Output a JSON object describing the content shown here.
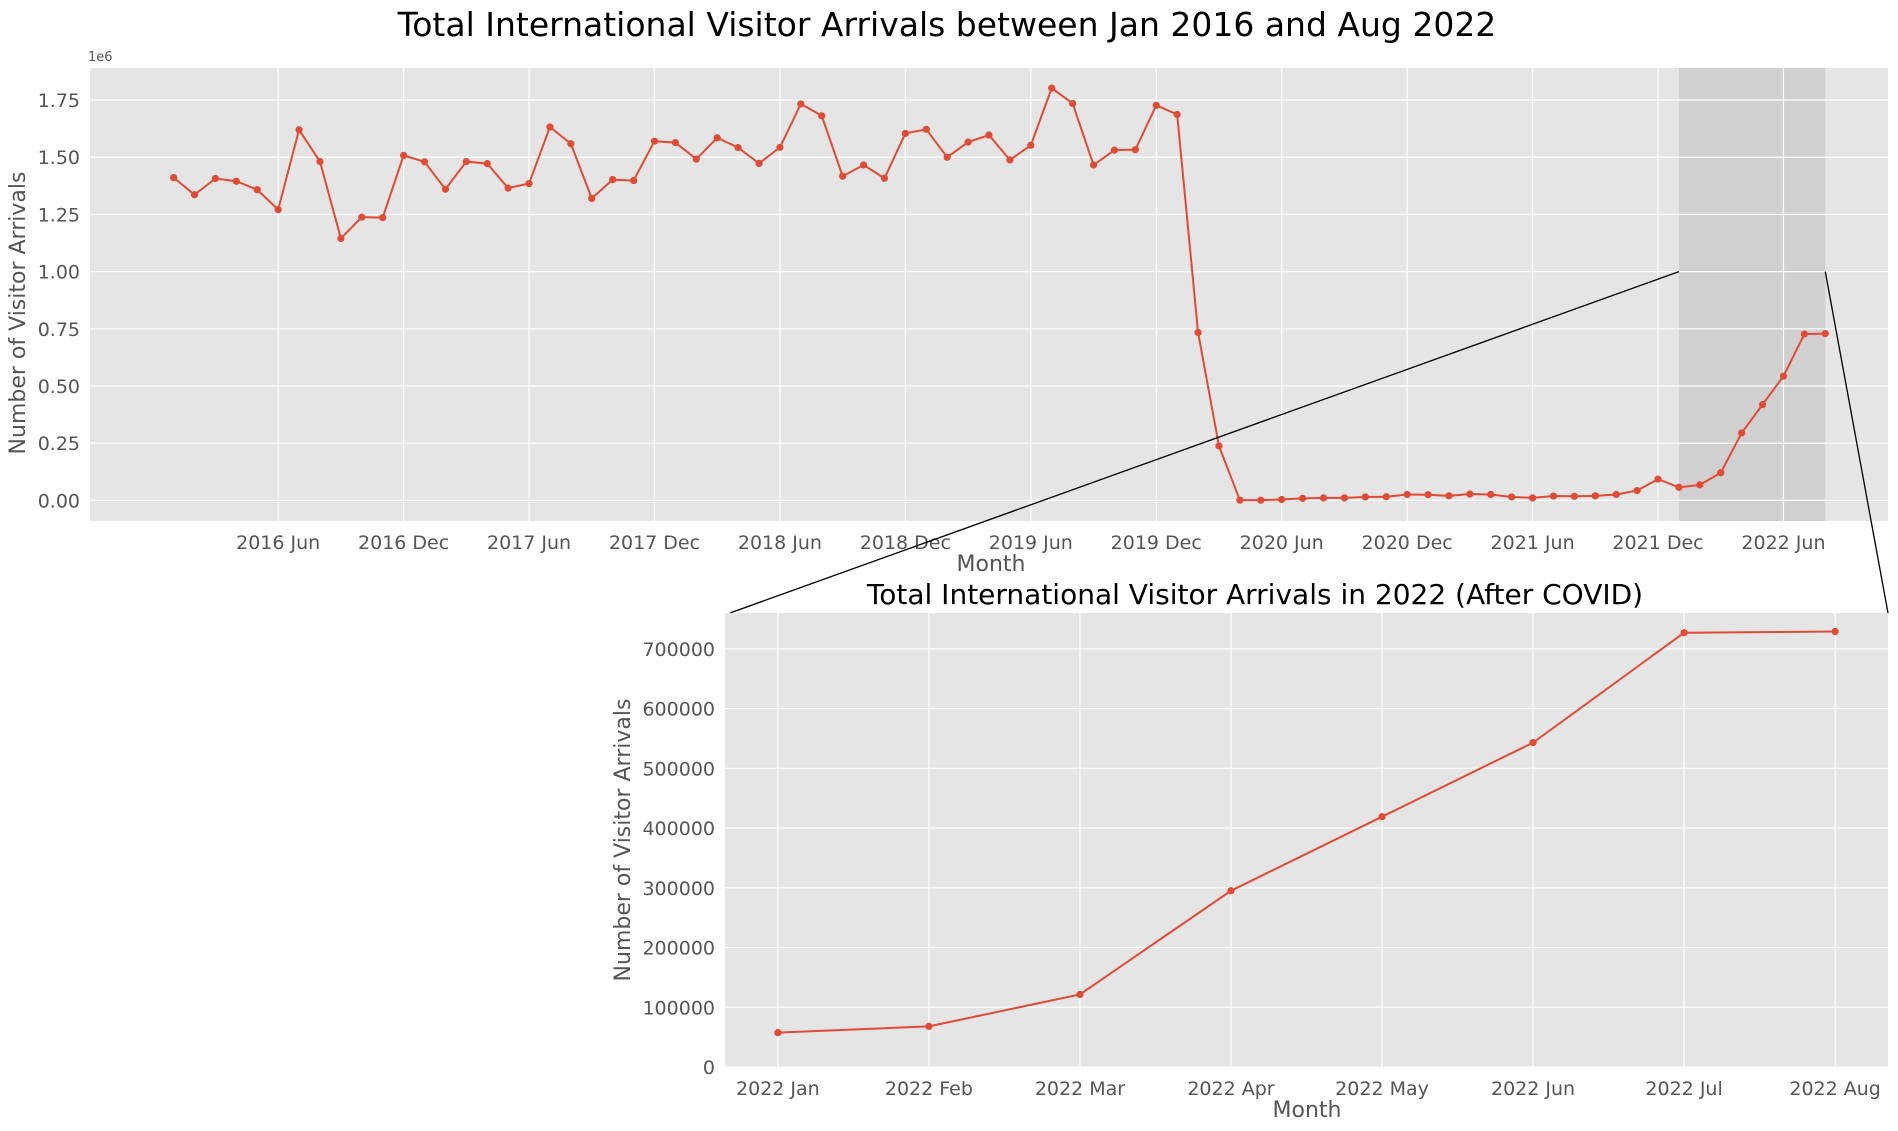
{
  "chart_data": [
    {
      "type": "line",
      "title": "Total International Visitor Arrivals between Jan 2016 and Aug 2022",
      "xlabel": "Month",
      "ylabel": "Number of Visitor Arrivals",
      "y_offset_label": "1e6",
      "ylim": [
        -0.09,
        1.89
      ],
      "x_start": "2016 Jan",
      "x_ticks": [
        {
          "label": "2016 Jun",
          "month_index": 5
        },
        {
          "label": "2016 Dec",
          "month_index": 11
        },
        {
          "label": "2017 Jun",
          "month_index": 17
        },
        {
          "label": "2017 Dec",
          "month_index": 23
        },
        {
          "label": "2018 Jun",
          "month_index": 29
        },
        {
          "label": "2018 Dec",
          "month_index": 35
        },
        {
          "label": "2019 Jun",
          "month_index": 41
        },
        {
          "label": "2019 Dec",
          "month_index": 47
        },
        {
          "label": "2020 Jun",
          "month_index": 53
        },
        {
          "label": "2020 Dec",
          "month_index": 59
        },
        {
          "label": "2021 Jun",
          "month_index": 65
        },
        {
          "label": "2021 Dec",
          "month_index": 71
        },
        {
          "label": "2022 Jun",
          "month_index": 77
        }
      ],
      "y_ticks": [
        "0.00",
        "0.25",
        "0.50",
        "0.75",
        "1.00",
        "1.25",
        "1.50",
        "1.75"
      ],
      "y_tick_values": [
        0,
        0.25,
        0.5,
        0.75,
        1.0,
        1.25,
        1.5,
        1.75
      ],
      "highlight_range": [
        72,
        79
      ],
      "grid": true,
      "series": [
        {
          "color": "#e24a33",
          "values": [
            1.411,
            1.336,
            1.407,
            1.395,
            1.358,
            1.271,
            1.62,
            1.481,
            1.145,
            1.238,
            1.236,
            1.508,
            1.48,
            1.36,
            1.481,
            1.472,
            1.365,
            1.385,
            1.632,
            1.559,
            1.32,
            1.402,
            1.398,
            1.57,
            1.564,
            1.492,
            1.585,
            1.542,
            1.473,
            1.543,
            1.733,
            1.681,
            1.417,
            1.466,
            1.408,
            1.604,
            1.622,
            1.5,
            1.566,
            1.597,
            1.488,
            1.552,
            1.802,
            1.735,
            1.466,
            1.531,
            1.533,
            1.727,
            1.687,
            0.734,
            0.238,
            0.001,
            0.001,
            0.004,
            0.009,
            0.011,
            0.011,
            0.015,
            0.016,
            0.026,
            0.025,
            0.02,
            0.028,
            0.026,
            0.015,
            0.011,
            0.019,
            0.018,
            0.02,
            0.026,
            0.043,
            0.093,
            0.057,
            0.068,
            0.121,
            0.295,
            0.419,
            0.543,
            0.727,
            0.729
          ]
        }
      ]
    },
    {
      "type": "line",
      "title": "Total International Visitor Arrivals in 2022 (After COVID)",
      "xlabel": "Month",
      "ylabel": "Number of Visitor Arrivals",
      "categories": [
        "2022 Jan",
        "2022 Feb",
        "2022 Mar",
        "2022 Apr",
        "2022 May",
        "2022 Jun",
        "2022 Jul",
        "2022 Aug"
      ],
      "y_ticks": [
        "0",
        "100000",
        "200000",
        "300000",
        "400000",
        "500000",
        "600000",
        "700000"
      ],
      "y_tick_values": [
        0,
        100000,
        200000,
        300000,
        400000,
        500000,
        600000,
        700000
      ],
      "ylim": [
        0,
        760000
      ],
      "grid": true,
      "series": [
        {
          "color": "#e24a33",
          "values": [
            57500,
            68000,
            121500,
            295000,
            419000,
            543000,
            727000,
            729000
          ]
        }
      ]
    }
  ],
  "colors": {
    "axes_bg": "#e5e5e5",
    "grid": "#ffffff",
    "line": "#e24a33",
    "highlight": "#c8c8c8"
  }
}
